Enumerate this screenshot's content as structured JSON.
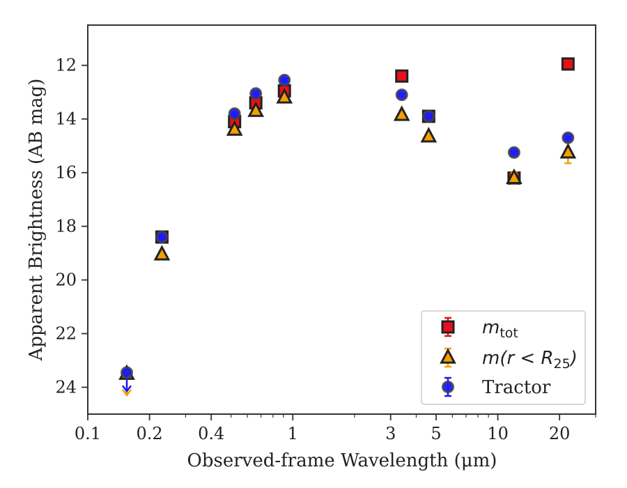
{
  "chart_data": {
    "type": "scatter",
    "xlabel": "Observed-frame Wavelength (μm)",
    "ylabel": "Apparent Brightness (AB mag)",
    "x_scale": "log",
    "xlim": [
      0.1,
      30
    ],
    "ylim": [
      25,
      10.5
    ],
    "y_inverted": true,
    "x_ticks": [
      0.1,
      0.2,
      0.4,
      1,
      3,
      5,
      10,
      20
    ],
    "x_tick_labels": [
      "0.1",
      "0.2",
      "0.4",
      "1",
      "3",
      "5",
      "10",
      "20"
    ],
    "y_ticks": [
      12,
      14,
      16,
      18,
      20,
      22,
      24
    ],
    "y_tick_labels": [
      "12",
      "14",
      "16",
      "18",
      "20",
      "22",
      "24"
    ],
    "grid": false,
    "legend_position": "lower-right",
    "series": [
      {
        "name": "m_tot",
        "marker": "square",
        "color": "#e8101a",
        "edge_color": "#222222",
        "points": [
          {
            "x": 0.52,
            "y": 14.1,
            "err": 0.12
          },
          {
            "x": 0.66,
            "y": 13.4,
            "err": 0.1
          },
          {
            "x": 0.91,
            "y": 12.95,
            "err": 0.1
          },
          {
            "x": 0.23,
            "y": 18.4,
            "err": 0.05
          },
          {
            "x": 3.4,
            "y": 12.4,
            "err": 0.05
          },
          {
            "x": 4.6,
            "y": 13.9,
            "err": 0.05
          },
          {
            "x": 12.0,
            "y": 16.2,
            "err": 0.1
          },
          {
            "x": 22.0,
            "y": 11.95,
            "err": 0.05
          }
        ]
      },
      {
        "name": "m(r<R25)",
        "marker": "triangle",
        "color": "#f5a000",
        "edge_color": "#222222",
        "points": [
          {
            "x": 0.155,
            "y": 23.5,
            "err": 0,
            "upper_limit": true,
            "limit_to": 24.3
          },
          {
            "x": 0.23,
            "y": 19.05,
            "err": 0.05
          },
          {
            "x": 0.52,
            "y": 14.4,
            "err": 0.05
          },
          {
            "x": 0.66,
            "y": 13.7,
            "err": 0.05
          },
          {
            "x": 0.91,
            "y": 13.2,
            "err": 0.05
          },
          {
            "x": 3.4,
            "y": 13.85,
            "err": 0.05
          },
          {
            "x": 4.6,
            "y": 14.65,
            "err": 0.05
          },
          {
            "x": 12.0,
            "y": 16.2,
            "err": 0.2
          },
          {
            "x": 22.0,
            "y": 15.25,
            "err": 0.4
          }
        ]
      },
      {
        "name": "Tractor",
        "marker": "circle",
        "color": "#1a1aff",
        "edge_color": "#444444",
        "points": [
          {
            "x": 0.155,
            "y": 23.45,
            "err": 0,
            "upper_limit": true,
            "limit_to": 24.15
          },
          {
            "x": 0.23,
            "y": 18.4,
            "err": 0.05
          },
          {
            "x": 0.52,
            "y": 13.8,
            "err": 0.05
          },
          {
            "x": 0.66,
            "y": 13.05,
            "err": 0.05
          },
          {
            "x": 0.91,
            "y": 12.55,
            "err": 0.05
          },
          {
            "x": 3.4,
            "y": 13.1,
            "err": 0.05
          },
          {
            "x": 4.6,
            "y": 13.9,
            "err": 0.05
          },
          {
            "x": 12.0,
            "y": 15.25,
            "err": 0.05
          },
          {
            "x": 22.0,
            "y": 14.7,
            "err": 0.05
          }
        ]
      }
    ],
    "legend": {
      "entries": [
        {
          "series": 0,
          "label": "m_tot"
        },
        {
          "series": 1,
          "label": "m(r < R25)"
        },
        {
          "series": 2,
          "label": "Tractor"
        }
      ]
    }
  }
}
